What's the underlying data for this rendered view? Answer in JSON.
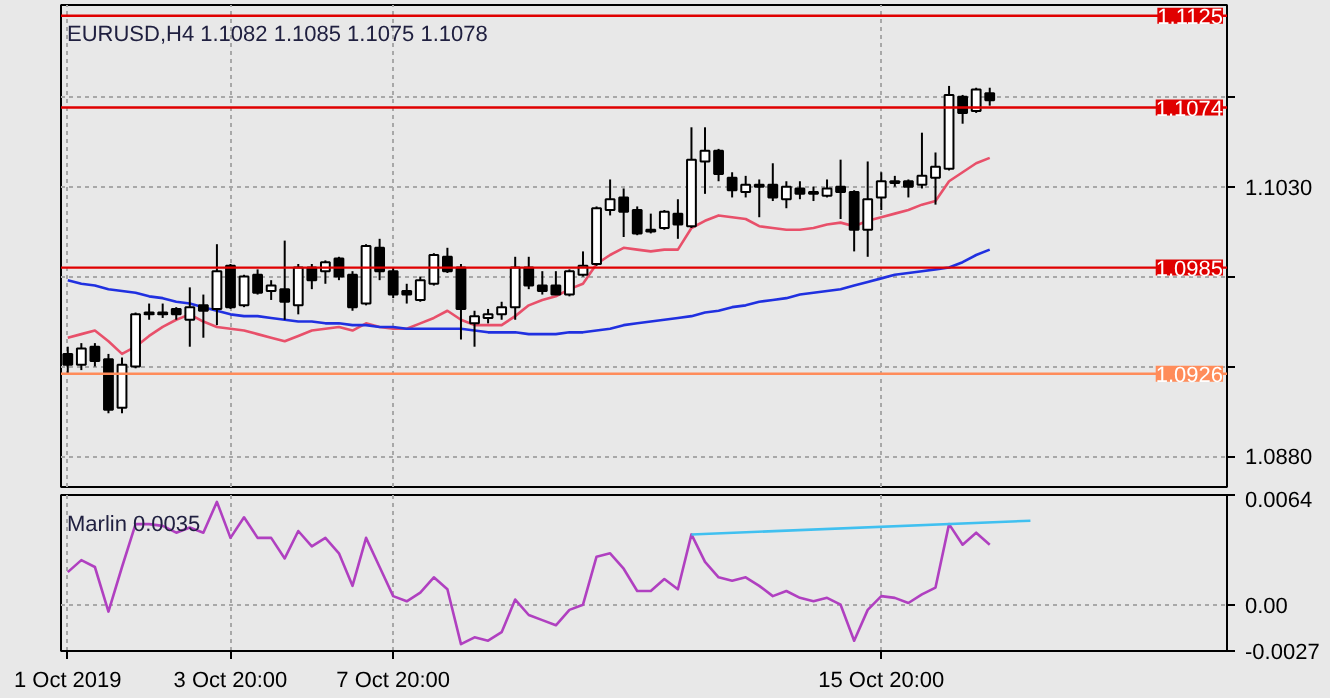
{
  "chart_data": [
    {
      "type": "candlestick",
      "title": "EURUSD,H4  1.1082 1.1085 1.1075 1.1078",
      "categories": [
        null,
        null,
        null,
        null,
        null,
        null,
        null,
        null,
        null,
        null,
        null,
        null,
        null,
        null,
        null,
        null,
        null,
        null,
        null,
        null,
        null,
        null,
        null,
        null,
        null,
        null,
        null,
        null,
        null,
        null,
        null,
        null,
        null,
        null,
        null,
        null,
        null,
        null,
        null,
        null,
        null,
        null,
        null,
        null,
        null,
        null,
        null,
        null,
        null,
        null,
        null,
        null,
        null,
        null,
        null,
        null,
        null,
        null,
        null,
        null,
        null,
        null,
        null,
        null,
        null,
        null,
        null,
        null,
        null,
        null,
        null,
        null,
        null,
        null,
        null,
        null,
        null,
        null,
        null,
        null,
        null,
        null,
        null,
        null,
        null,
        null
      ],
      "ohlc": [
        [
          1.0937,
          1.0941,
          1.0926,
          1.0931
        ],
        [
          1.0931,
          1.0943,
          1.0928,
          1.094
        ],
        [
          1.0941,
          1.0943,
          1.093,
          1.0933
        ],
        [
          1.0934,
          1.0937,
          1.0904,
          1.0906
        ],
        [
          1.0907,
          1.0935,
          1.0904,
          1.0931
        ],
        [
          1.093,
          1.096,
          1.0929,
          1.0959
        ],
        [
          1.096,
          1.0965,
          1.0956,
          1.0959
        ],
        [
          1.0959,
          1.0965,
          1.0957,
          1.096
        ],
        [
          1.0962,
          1.0963,
          1.0956,
          1.0959
        ],
        [
          1.0956,
          1.0974,
          1.0941,
          1.0963
        ],
        [
          1.0964,
          1.097,
          1.0946,
          1.0961
        ],
        [
          1.0962,
          1.0998,
          1.0953,
          1.0983
        ],
        [
          1.0986,
          1.0987,
          1.0962,
          1.0963
        ],
        [
          1.0964,
          1.0981,
          1.0963,
          1.098
        ],
        [
          1.0981,
          1.0984,
          1.097,
          1.0971
        ],
        [
          1.0972,
          1.0978,
          1.0967,
          1.0975
        ],
        [
          1.0973,
          1.1,
          1.0956,
          1.0966
        ],
        [
          1.0964,
          1.0987,
          1.0959,
          1.0985
        ],
        [
          1.0985,
          1.0987,
          1.0973,
          1.0978
        ],
        [
          1.0983,
          1.0989,
          1.0976,
          1.0988
        ],
        [
          1.099,
          1.0991,
          1.0978,
          1.098
        ],
        [
          1.0981,
          1.0983,
          1.0961,
          1.0963
        ],
        [
          1.0965,
          1.0998,
          1.0964,
          1.0997
        ],
        [
          1.0996,
          1.1001,
          1.0978,
          1.0983
        ],
        [
          1.0983,
          1.0985,
          1.0968,
          1.097
        ],
        [
          1.0972,
          1.0976,
          1.0965,
          1.097
        ],
        [
          1.0967,
          1.098,
          1.0966,
          1.0978
        ],
        [
          1.0976,
          1.0993,
          1.0975,
          1.0992
        ],
        [
          1.0991,
          1.0996,
          1.0982,
          1.0983
        ],
        [
          1.0985,
          1.0987,
          1.0945,
          1.0962
        ],
        [
          1.0954,
          1.0961,
          1.0941,
          1.0958
        ],
        [
          1.0957,
          1.0962,
          1.0954,
          1.0959
        ],
        [
          1.0959,
          1.0966,
          1.0956,
          1.0963
        ],
        [
          1.0963,
          1.0991,
          1.0956,
          1.0985
        ],
        [
          1.0985,
          1.0991,
          1.0973,
          1.0975
        ],
        [
          1.0975,
          1.0983,
          1.097,
          1.0972
        ],
        [
          1.0975,
          1.0983,
          1.097,
          1.097
        ],
        [
          1.097,
          1.0984,
          1.0969,
          1.0983
        ],
        [
          1.0981,
          1.0994,
          1.098,
          1.0986
        ],
        [
          1.0987,
          1.1019,
          1.0986,
          1.1018
        ],
        [
          1.1017,
          1.1034,
          1.1014,
          1.1023
        ],
        [
          1.1024,
          1.1029,
          1.1002,
          1.1016
        ],
        [
          1.1017,
          1.1019,
          1.1003,
          1.1004
        ],
        [
          1.1006,
          1.1015,
          1.1004,
          1.1005
        ],
        [
          1.1007,
          1.1017,
          1.1006,
          1.1016
        ],
        [
          1.1015,
          1.1023,
          1.1001,
          1.1009
        ],
        [
          1.1008,
          1.1063,
          1.1007,
          1.1045
        ],
        [
          1.1044,
          1.1063,
          1.1026,
          1.105
        ],
        [
          1.105,
          1.1051,
          1.1033,
          1.1037
        ],
        [
          1.1035,
          1.1038,
          1.1024,
          1.1028
        ],
        [
          1.1027,
          1.1036,
          1.1024,
          1.1031
        ],
        [
          1.1031,
          1.1034,
          1.1013,
          1.103
        ],
        [
          1.1031,
          1.1043,
          1.1022,
          1.1024
        ],
        [
          1.1023,
          1.1033,
          1.1018,
          1.103
        ],
        [
          1.1029,
          1.1033,
          1.1023,
          1.1026
        ],
        [
          1.1027,
          1.103,
          1.1022,
          1.1026
        ],
        [
          1.1025,
          1.1034,
          1.1024,
          1.1029
        ],
        [
          1.103,
          1.1045,
          1.1012,
          1.1027
        ],
        [
          1.1027,
          1.1028,
          1.0994,
          1.1006
        ],
        [
          1.1006,
          1.1044,
          1.0991,
          1.1023
        ],
        [
          1.1024,
          1.1038,
          1.1017,
          1.1033
        ],
        [
          1.1032,
          1.1036,
          1.103,
          1.1033
        ],
        [
          1.1033,
          1.1034,
          1.1024,
          1.103
        ],
        [
          1.1031,
          1.106,
          1.1029,
          1.1036
        ],
        [
          1.1035,
          1.1049,
          1.102,
          1.1041
        ],
        [
          1.104,
          1.1086,
          1.1039,
          1.1081
        ],
        [
          1.108,
          1.1081,
          1.1065,
          1.1071
        ],
        [
          1.1072,
          1.1085,
          1.1071,
          1.1084
        ],
        [
          1.1082,
          1.1085,
          1.1075,
          1.1078
        ],
        null,
        null,
        null,
        null,
        null,
        null,
        null,
        null,
        null,
        null,
        null,
        null,
        null,
        null,
        null,
        null,
        null
      ],
      "series": [
        {
          "type": "line",
          "color": "#e8506a",
          "values": [
            1.0946,
            1.0948,
            1.095,
            1.0944,
            1.0937,
            1.0941,
            1.0947,
            1.0952,
            1.0956,
            1.0959,
            1.0955,
            1.0952,
            1.0951,
            1.095,
            1.0948,
            1.0946,
            1.0944,
            1.0947,
            1.095,
            1.0951,
            1.0952,
            1.095,
            1.0954,
            1.0952,
            1.0951,
            1.0951,
            1.0954,
            1.0957,
            1.0961,
            1.0956,
            1.0953,
            1.0953,
            1.0953,
            1.0958,
            1.0964,
            1.0967,
            1.0969,
            1.0973,
            1.0976,
            1.0987,
            1.0992,
            1.0996,
            1.0995,
            1.0994,
            1.0995,
            1.0995,
            1.1007,
            1.1011,
            1.1014,
            1.1013,
            1.1012,
            1.1008,
            1.1007,
            1.1006,
            1.1006,
            1.1007,
            1.1009,
            1.101,
            1.1008,
            1.1011,
            1.1013,
            1.1015,
            1.1017,
            1.102,
            1.1022,
            1.1033,
            1.1038,
            1.1043,
            1.1046,
            null,
            null,
            null,
            null,
            null,
            null,
            null,
            null,
            null,
            null,
            null,
            null,
            null,
            null,
            null,
            null,
            null
          ]
        },
        {
          "type": "line",
          "color": "#2030e0",
          "values": [
            1.0978,
            1.0976,
            1.0975,
            1.0973,
            1.0972,
            1.0971,
            1.0969,
            1.0968,
            1.0966,
            1.0965,
            1.0963,
            1.0961,
            1.0959,
            1.0958,
            1.0958,
            1.0957,
            1.0956,
            1.0955,
            1.0955,
            1.0954,
            1.0954,
            1.0953,
            1.0953,
            1.0952,
            1.0952,
            1.0951,
            1.0951,
            1.0951,
            1.0951,
            1.0951,
            1.095,
            1.0949,
            1.0949,
            1.0949,
            1.0948,
            1.0948,
            1.0948,
            1.0949,
            1.0949,
            1.095,
            1.0951,
            1.0953,
            1.0954,
            1.0955,
            1.0956,
            1.0957,
            1.0958,
            1.096,
            1.0961,
            1.0963,
            1.0964,
            1.0966,
            1.0967,
            1.0968,
            1.097,
            1.0971,
            1.0972,
            1.0973,
            1.0975,
            1.0977,
            1.0979,
            1.0981,
            1.0982,
            1.0983,
            1.0984,
            1.0985,
            1.0988,
            1.0992,
            1.0995,
            null,
            null,
            null,
            null,
            null,
            null,
            null,
            null,
            null,
            null,
            null,
            null,
            null,
            null,
            null,
            null,
            null
          ]
        }
      ],
      "ylim": [
        1.0863,
        1.1131
      ],
      "yticks": [
        {
          "value": 1.088,
          "label": "1.0880"
        },
        {
          "value": 1.093,
          "label": null
        },
        {
          "value": 1.098,
          "label": null
        },
        {
          "value": 1.103,
          "label": "1.1030"
        },
        {
          "value": 1.108,
          "label": null
        }
      ],
      "tick_labels": "y",
      "grid": true,
      "marker": "none",
      "line_style": "solid",
      "ref_lines": [
        {
          "axis": "y",
          "value": 1.1125,
          "label": "1.1125",
          "color": "#e00000"
        },
        {
          "axis": "y",
          "value": 1.1074,
          "label": "1.1074",
          "color": "#e00000"
        },
        {
          "axis": "y",
          "value": 1.0985,
          "label": "1.0985",
          "color": "#e00000"
        },
        {
          "axis": "y",
          "value": 1.0926,
          "label": "1.0926",
          "color": "#ff8c5a"
        }
      ]
    },
    {
      "type": "line",
      "title": "Marlin 0.0035",
      "categories": [
        "1 Oct 2019",
        null,
        null,
        null,
        null,
        null,
        null,
        null,
        null,
        null,
        null,
        null,
        "3 Oct 20:00",
        null,
        null,
        null,
        null,
        null,
        null,
        null,
        null,
        null,
        null,
        null,
        "7 Oct 20:00",
        null,
        null,
        null,
        null,
        null,
        null,
        null,
        null,
        null,
        null,
        null,
        null,
        null,
        null,
        null,
        null,
        null,
        null,
        null,
        null,
        null,
        null,
        null,
        null,
        null,
        null,
        null,
        null,
        null,
        null,
        null,
        null,
        null,
        null,
        null,
        "15 Oct 20:00",
        null,
        null,
        null,
        null,
        null,
        null,
        null,
        null,
        null,
        null,
        null,
        null,
        null,
        null,
        null,
        null,
        null,
        null,
        null,
        null,
        null,
        null,
        null,
        null,
        null
      ],
      "series": [
        {
          "color": "#b040c0",
          "values": [
            0.0019,
            0.0026,
            0.0022,
            -0.0004,
            0.0022,
            0.0047,
            0.0047,
            0.0046,
            0.0042,
            0.0045,
            0.0042,
            0.006,
            0.0039,
            0.0051,
            0.0039,
            0.0039,
            0.0027,
            0.0043,
            0.0034,
            0.0039,
            0.003,
            0.0011,
            0.0039,
            0.0022,
            0.0005,
            0.0002,
            0.0007,
            0.0016,
            0.0009,
            -0.0023,
            -0.0019,
            -0.0021,
            -0.0016,
            0.0003,
            -0.0006,
            -0.0009,
            -0.0012,
            -0.0003,
            0.0,
            0.0028,
            0.003,
            0.0021,
            0.0008,
            0.0008,
            0.0015,
            0.0009,
            0.0041,
            0.0025,
            0.0016,
            0.0014,
            0.0016,
            0.0011,
            0.0005,
            0.0008,
            0.0004,
            0.0002,
            0.0004,
            0.0,
            -0.0021,
            -0.0003,
            0.0005,
            0.0004,
            0.0001,
            0.0006,
            0.001,
            0.0047,
            0.0035,
            0.0042,
            0.0035,
            null,
            null,
            null,
            null,
            null,
            null,
            null,
            null,
            null,
            null,
            null,
            null,
            null,
            null,
            null,
            null,
            null
          ]
        },
        {
          "color": "#40c0f0",
          "values": [
            null,
            null,
            null,
            null,
            null,
            null,
            null,
            null,
            null,
            null,
            null,
            null,
            null,
            null,
            null,
            null,
            null,
            null,
            null,
            null,
            null,
            null,
            null,
            null,
            null,
            null,
            null,
            null,
            null,
            null,
            null,
            null,
            null,
            null,
            null,
            null,
            null,
            null,
            null,
            null,
            null,
            null,
            null,
            null,
            null,
            null,
            0.0041,
            null,
            null,
            null,
            null,
            null,
            null,
            null,
            null,
            null,
            null,
            null,
            null,
            null,
            null,
            null,
            null,
            null,
            null,
            null,
            null,
            null,
            null,
            null,
            null,
            0.0049,
            null,
            null,
            null,
            null,
            null,
            null,
            null,
            null,
            null,
            null,
            null,
            null,
            null,
            null
          ]
        }
      ],
      "ylim": [
        -0.0027,
        0.0064
      ],
      "yticks": [
        -0.0027,
        {
          "value": 0,
          "label": "0.00"
        },
        0.0064
      ],
      "grid": true,
      "marker": "none",
      "line_style": "solid"
    }
  ]
}
